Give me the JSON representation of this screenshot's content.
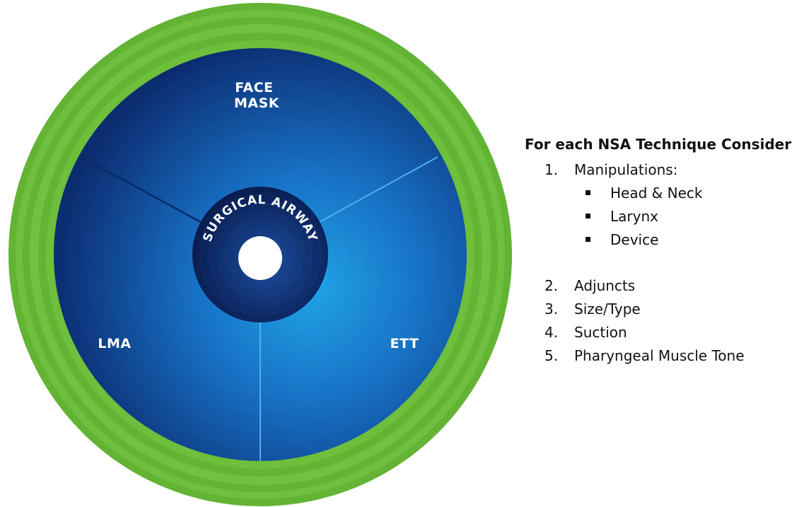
{
  "diagram": {
    "sectors": {
      "top": "FACE\nMASK",
      "right": "ETT",
      "left": "LMA"
    },
    "center_label": "SURGICAL AIRWAY",
    "colors": {
      "outer_ring": "#6dbf3c",
      "sector_dark": "#0d2f73",
      "sector_light": "#1e9be0",
      "center_dark": "#0a1a45",
      "divider": "#4fb0ee"
    }
  },
  "consider": {
    "heading": "For each NSA Technique Consider:",
    "items": [
      {
        "number": "1.",
        "label": "Manipulations:",
        "subitems": [
          "Head & Neck",
          "Larynx",
          "Device"
        ]
      },
      {
        "number": "2.",
        "label": "Adjuncts"
      },
      {
        "number": "3.",
        "label": "Size/Type"
      },
      {
        "number": "4.",
        "label": "Suction"
      },
      {
        "number": "5.",
        "label": "Pharyngeal Muscle Tone"
      }
    ]
  }
}
